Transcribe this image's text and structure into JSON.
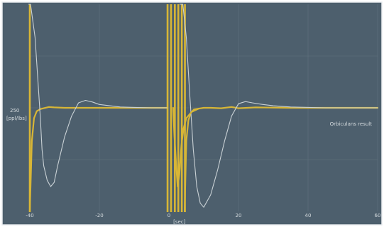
{
  "chart_data": {
    "type": "line",
    "title": "",
    "xlabel": "[sec]",
    "ylabel_value": "250",
    "ylabel_unit": "[ppl/lbs]",
    "xlim": [
      -40,
      60
    ],
    "ylim": [
      0,
      500
    ],
    "grid": true,
    "x_ticks": [
      -40,
      -20,
      0,
      20,
      40,
      60
    ],
    "x_tick_labels": [
      "-40",
      "-20",
      "0",
      "20",
      "40",
      "60"
    ],
    "annotation": "Orbiculans result",
    "colors": {
      "background": "#4d5f6d",
      "grid": "#62737f",
      "reference": "#d8b636",
      "response": "#c9d1d5",
      "frame": "#e8ecee"
    },
    "series": [
      {
        "style": "reference",
        "x": [
          -40,
          -39.4,
          -38.8,
          -38,
          -37,
          -36,
          -34.5,
          -33,
          -30,
          -25,
          -15,
          -5,
          -0.5
        ],
        "y": [
          0,
          170,
          225,
          242,
          247,
          249,
          252,
          251,
          250,
          250,
          250,
          250,
          250
        ]
      },
      {
        "style": "response",
        "x": [
          -40.3,
          -39.8,
          -38.5,
          -37,
          -36.5,
          -36,
          -35,
          -34,
          -33,
          -32,
          -30,
          -28,
          -26,
          -24,
          -22,
          -20,
          -17,
          -14,
          -10,
          -5,
          -0.5
        ],
        "y": [
          500,
          500,
          420,
          230,
          150,
          110,
          75,
          60,
          70,
          110,
          180,
          230,
          262,
          268,
          264,
          258,
          255,
          252,
          251,
          250,
          250
        ]
      },
      {
        "style": "reference",
        "x": [
          4.5,
          5,
          5.6,
          6.3,
          7.2,
          8.5,
          10,
          12,
          15,
          18,
          20,
          25,
          35,
          45,
          60
        ],
        "y": [
          0,
          170,
          220,
          238,
          246,
          248,
          250,
          250,
          249,
          252,
          249,
          251,
          250,
          250,
          250
        ]
      },
      {
        "style": "response",
        "x": [
          3.2,
          4,
          5,
          6,
          7,
          8,
          9,
          10,
          12,
          14,
          16,
          18,
          20,
          22,
          24,
          27,
          30,
          35,
          45,
          60
        ],
        "y": [
          500,
          500,
          420,
          280,
          150,
          60,
          20,
          10,
          40,
          100,
          170,
          230,
          260,
          265,
          262,
          258,
          255,
          252,
          250,
          250
        ]
      },
      {
        "style": "reference",
        "x": [
          1.2,
          1.6,
          2.1,
          2.5,
          3,
          3.6,
          4.2,
          5,
          6.5,
          8.5
        ],
        "y": [
          250,
          180,
          110,
          60,
          90,
          160,
          200,
          225,
          240,
          248
        ]
      }
    ],
    "reference_bars": [
      -40,
      -0.4,
      0.6,
      1.7,
      2.7,
      3.7,
      4.6
    ]
  }
}
